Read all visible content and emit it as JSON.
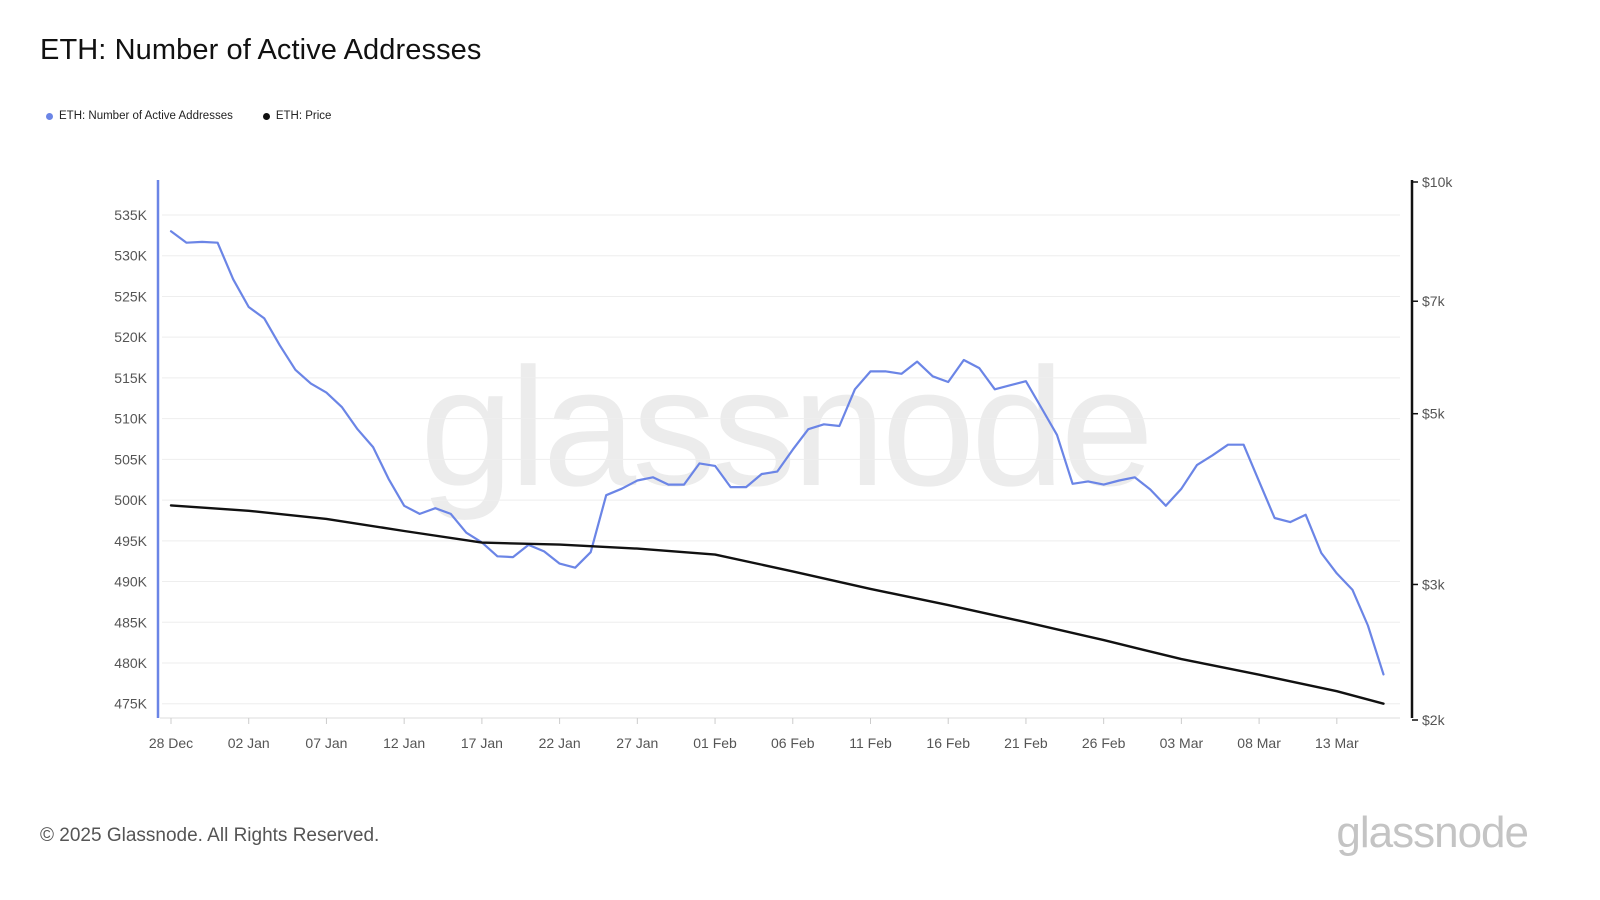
{
  "title": "ETH: Number of Active Addresses",
  "legend": [
    {
      "label": "ETH: Number of Active Addresses",
      "color": "#6b85e6"
    },
    {
      "label": "ETH: Price",
      "color": "#111111"
    }
  ],
  "watermark": "glassnode",
  "footer": "© 2025 Glassnode. All Rights Reserved.",
  "brand": "glassnode",
  "chart_data": {
    "type": "line",
    "x_ticks": [
      "28 Dec",
      "02 Jan",
      "07 Jan",
      "12 Jan",
      "17 Jan",
      "22 Jan",
      "27 Jan",
      "01 Feb",
      "06 Feb",
      "11 Feb",
      "16 Feb",
      "21 Feb",
      "26 Feb",
      "03 Mar",
      "08 Mar",
      "13 Mar"
    ],
    "x_range": [
      "2024-12-28",
      "2025-03-17"
    ],
    "left_axis": {
      "ticks": [
        "475K",
        "480K",
        "485K",
        "490K",
        "495K",
        "500K",
        "505K",
        "510K",
        "515K",
        "520K",
        "525K",
        "530K",
        "535K"
      ],
      "range": [
        474000,
        539000
      ],
      "color": "#6b85e6"
    },
    "right_axis": {
      "scale": "log",
      "ticks": [
        {
          "value": 2000,
          "label": "$2k"
        },
        {
          "value": 3000,
          "label": "$3k"
        },
        {
          "value": 5000,
          "label": "$5k"
        },
        {
          "value": 7000,
          "label": "$7k"
        },
        {
          "value": 10000,
          "label": "$10k"
        }
      ],
      "range": [
        2000,
        10000
      ],
      "color": "#111111"
    },
    "grid": true,
    "series": [
      {
        "name": "ETH: Number of Active Addresses",
        "axis": "left",
        "color": "#6b85e6",
        "x": [
          "2024-12-28",
          "2024-12-29",
          "2024-12-30",
          "2024-12-31",
          "2025-01-01",
          "2025-01-02",
          "2025-01-03",
          "2025-01-04",
          "2025-01-05",
          "2025-01-06",
          "2025-01-07",
          "2025-01-08",
          "2025-01-09",
          "2025-01-10",
          "2025-01-11",
          "2025-01-12",
          "2025-01-13",
          "2025-01-14",
          "2025-01-15",
          "2025-01-16",
          "2025-01-17",
          "2025-01-18",
          "2025-01-19",
          "2025-01-20",
          "2025-01-21",
          "2025-01-22",
          "2025-01-23",
          "2025-01-24",
          "2025-01-25",
          "2025-01-26",
          "2025-01-27",
          "2025-01-28",
          "2025-01-29",
          "2025-01-30",
          "2025-01-31",
          "2025-02-01",
          "2025-02-02",
          "2025-02-03",
          "2025-02-04",
          "2025-02-05",
          "2025-02-06",
          "2025-02-07",
          "2025-02-08",
          "2025-02-09",
          "2025-02-10",
          "2025-02-11",
          "2025-02-12",
          "2025-02-13",
          "2025-02-14",
          "2025-02-15",
          "2025-02-16",
          "2025-02-17",
          "2025-02-18",
          "2025-02-19",
          "2025-02-20",
          "2025-02-21",
          "2025-02-22",
          "2025-02-23",
          "2025-02-24",
          "2025-02-25",
          "2025-02-26",
          "2025-02-27",
          "2025-02-28",
          "2025-03-01",
          "2025-03-02",
          "2025-03-03",
          "2025-03-04",
          "2025-03-05",
          "2025-03-06",
          "2025-03-07",
          "2025-03-08",
          "2025-03-09",
          "2025-03-10",
          "2025-03-11",
          "2025-03-12",
          "2025-03-13",
          "2025-03-14",
          "2025-03-15",
          "2025-03-16"
        ],
        "y": [
          533000,
          531600,
          531700,
          531600,
          527100,
          523700,
          522300,
          519000,
          516000,
          514300,
          513200,
          511400,
          508700,
          506500,
          502600,
          499300,
          498300,
          499000,
          498300,
          496000,
          494800,
          493100,
          493000,
          494500,
          493700,
          492200,
          491700,
          493600,
          500600,
          501400,
          502400,
          502800,
          501900,
          501900,
          504500,
          504200,
          501600,
          501600,
          503200,
          503500,
          506200,
          508700,
          509300,
          509100,
          513600,
          515800,
          515800,
          515500,
          517000,
          515200,
          514500,
          517200,
          516200,
          513600,
          514100,
          514600,
          511300,
          508000,
          502000,
          502300,
          501900,
          502400,
          502800,
          501300,
          499300,
          501400,
          504300,
          505500,
          506800,
          506800,
          502300,
          497800,
          497300,
          498200,
          493500,
          491000,
          489000,
          484600,
          478600
        ]
      },
      {
        "name": "ETH: Price",
        "axis": "right",
        "color": "#111111",
        "x": [
          "2024-12-28",
          "2025-01-02",
          "2025-01-07",
          "2025-01-12",
          "2025-01-17",
          "2025-01-22",
          "2025-01-27",
          "2025-02-01",
          "2025-02-06",
          "2025-02-11",
          "2025-02-16",
          "2025-02-21",
          "2025-02-26",
          "2025-03-03",
          "2025-03-08",
          "2025-03-13",
          "2025-03-16"
        ],
        "y": [
          3800,
          3740,
          3650,
          3520,
          3400,
          3380,
          3340,
          3280,
          3120,
          2960,
          2820,
          2680,
          2540,
          2400,
          2290,
          2180,
          2100
        ]
      }
    ]
  }
}
